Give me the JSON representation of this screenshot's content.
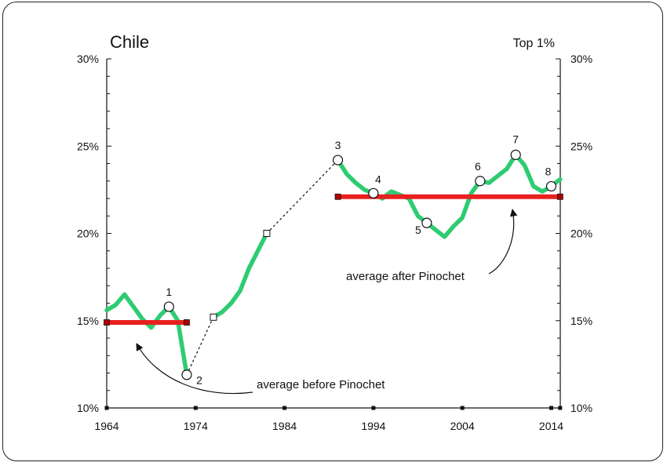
{
  "chart_data": {
    "type": "line",
    "title": "Chile",
    "subtitle": "Top 1%",
    "xlabel": "",
    "ylabel": "",
    "xlim": [
      1964,
      2015
    ],
    "ylim": [
      10,
      30
    ],
    "x_ticks": [
      "1964",
      "1974",
      "1984",
      "1994",
      "2004",
      "2014"
    ],
    "y_ticks": [
      "10%",
      "15%",
      "20%",
      "25%",
      "30%"
    ],
    "series": [
      {
        "name": "",
        "color": "#2ecc71",
        "segments": [
          [
            [
              1964,
              15.6
            ],
            [
              1965,
              15.9
            ],
            [
              1966,
              16.5
            ],
            [
              1967,
              15.8
            ],
            [
              1968,
              15.1
            ],
            [
              1969,
              14.6
            ],
            [
              1970,
              15.3
            ],
            [
              1971,
              15.8
            ],
            [
              1972,
              15.0
            ],
            [
              1973,
              11.9
            ]
          ],
          [
            [
              1976,
              15.2
            ],
            [
              1977,
              15.5
            ],
            [
              1978,
              16.0
            ],
            [
              1979,
              16.7
            ],
            [
              1980,
              18.0
            ],
            [
              1981,
              19.0
            ],
            [
              1982,
              20.0
            ]
          ],
          [
            [
              1990,
              24.2
            ],
            [
              1991,
              23.4
            ],
            [
              1992,
              22.9
            ],
            [
              1993,
              22.5
            ],
            [
              1994,
              22.3
            ],
            [
              1995,
              22.0
            ],
            [
              1996,
              22.4
            ],
            [
              1997,
              22.2
            ],
            [
              1998,
              22.0
            ],
            [
              1999,
              21.0
            ],
            [
              2000,
              20.6
            ],
            [
              2001,
              20.2
            ],
            [
              2002,
              19.8
            ],
            [
              2003,
              20.4
            ],
            [
              2004,
              20.9
            ],
            [
              2005,
              22.3
            ],
            [
              2006,
              23.0
            ],
            [
              2007,
              22.9
            ],
            [
              2008,
              23.3
            ],
            [
              2009,
              23.7
            ],
            [
              2010,
              24.5
            ],
            [
              2011,
              23.9
            ],
            [
              2012,
              22.7
            ],
            [
              2013,
              22.4
            ],
            [
              2014,
              22.7
            ],
            [
              2015,
              23.1
            ]
          ]
        ],
        "dashed_gaps": [
          [
            [
              1973,
              11.9
            ],
            [
              1976,
              15.2
            ]
          ],
          [
            [
              1982,
              20.0
            ],
            [
              1990,
              24.2
            ]
          ]
        ],
        "interpolated_points": [
          [
            1976,
            15.2
          ],
          [
            1982,
            20.0
          ]
        ]
      }
    ],
    "averages": [
      {
        "label": "average before Pinochet",
        "value": 14.9,
        "from": 1964,
        "to": 1973,
        "color": "#e82020"
      },
      {
        "label": "average after Pinochet",
        "value": 22.1,
        "from": 1990,
        "to": 2015,
        "color": "#e82020"
      }
    ],
    "marked_points": [
      {
        "label": "1",
        "x": 1971,
        "y": 15.8
      },
      {
        "label": "2",
        "x": 1973,
        "y": 11.9
      },
      {
        "label": "3",
        "x": 1990,
        "y": 24.2
      },
      {
        "label": "4",
        "x": 1994,
        "y": 22.3
      },
      {
        "label": "5",
        "x": 2000,
        "y": 20.6
      },
      {
        "label": "6",
        "x": 2006,
        "y": 23.0
      },
      {
        "label": "7",
        "x": 2010,
        "y": 24.5
      },
      {
        "label": "8",
        "x": 2014,
        "y": 22.7
      }
    ],
    "grid": false,
    "legend": "none"
  }
}
